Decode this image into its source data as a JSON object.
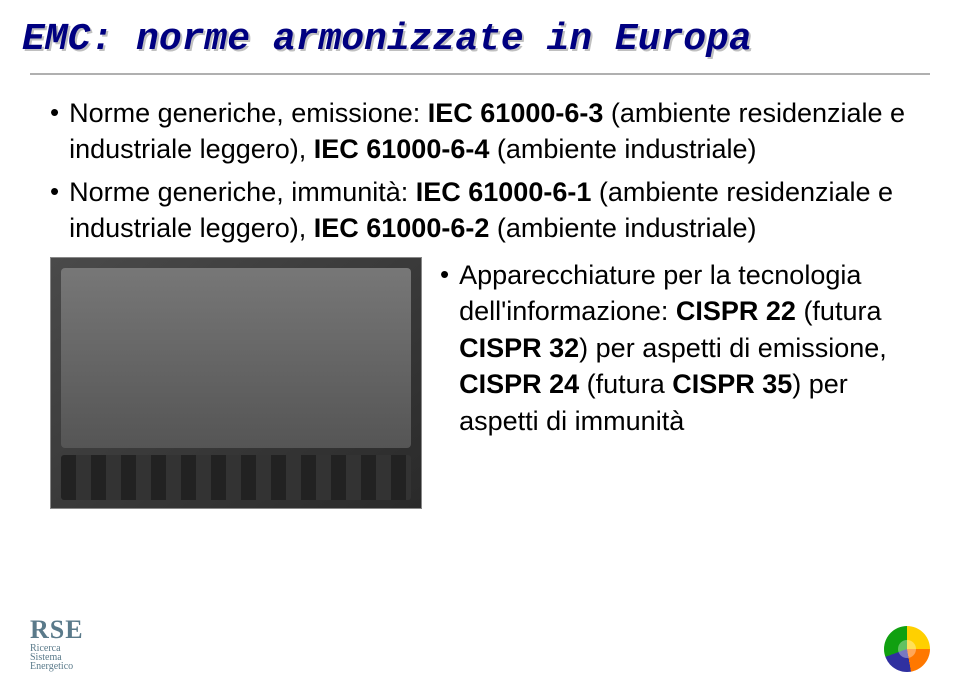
{
  "title": "EMC: norme armonizzate in Europa",
  "bullets": {
    "b1": "Norme generiche, emissione: <b>IEC 61000-6-3</b> (ambiente residenziale e industriale leggero), <b>IEC 61000-6-4</b> (ambiente industriale)",
    "b2": "Norme generiche, immunità: <b>IEC 61000-6-1</b> (ambiente residenziale e industriale leggero), <b>IEC 61000-6-2</b> (ambiente industriale)",
    "b3": "Apparecchiature per la tecnologia dell'informazione: <b>CISPR 22</b> (futura <b>CISPR 32</b>) per aspetti di emissione, <b>CISPR 24</b> (futura <b>CISPR 35</b>) per aspetti di immunità"
  },
  "logo": {
    "main": "RSE",
    "sub1": "Ricerca",
    "sub2": "Sistema",
    "sub3": "Energetico"
  },
  "colors": {
    "title_color": "#000080",
    "title_shadow": "#c0c0c0",
    "text_color": "#000000",
    "hr_color": "#b0b0b0",
    "logo_color": "#5a7a8a",
    "background": "#ffffff"
  },
  "typography": {
    "title_fontsize": 38,
    "body_fontsize": 27
  }
}
